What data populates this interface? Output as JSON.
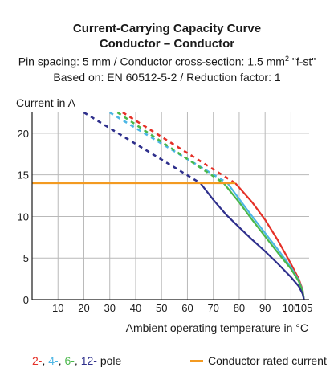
{
  "title": "Current-Carrying Capacity Curve",
  "subtitle": "Conductor – Conductor",
  "spacing_line_before": "Pin spacing: 5 mm / Conductor cross-section: 1.5 mm",
  "spacing_sup": "2",
  "spacing_line_after": " \"f-st\"",
  "basis_line": "Based on: EN 60512-5-2 / Reduction factor: 1",
  "legend": {
    "poles": [
      {
        "text": "2-",
        "color": "#e53027"
      },
      {
        "text": ", ",
        "color": "#1a1a1a"
      },
      {
        "text": "4-",
        "color": "#4cb6e5"
      },
      {
        "text": ", ",
        "color": "#1a1a1a"
      },
      {
        "text": "6-",
        "color": "#49b84a"
      },
      {
        "text": ", ",
        "color": "#1a1a1a"
      },
      {
        "text": "12-",
        "color": "#2e2f8c"
      },
      {
        "text": " pole",
        "color": "#1a1a1a"
      }
    ],
    "rated_label": "Conductor rated current",
    "rated_color": "#f39a21"
  },
  "chart_data": {
    "type": "line",
    "xlabel": "Ambient operating temperature in °C",
    "ylabel": "Current in A",
    "xlim": [
      0,
      107
    ],
    "ylim": [
      0,
      22.5
    ],
    "xticks": [
      10,
      20,
      30,
      40,
      50,
      60,
      70,
      80,
      90,
      100,
      105
    ],
    "yticks": [
      0,
      5,
      10,
      15,
      20
    ],
    "grid": true,
    "series": [
      {
        "name": "2-pole",
        "color": "#e53027",
        "dashed": [
          [
            35,
            22.5
          ],
          [
            78.5,
            14.0
          ]
        ],
        "solid": [
          [
            78.5,
            14.0
          ],
          [
            85,
            11.7
          ],
          [
            90,
            9.6
          ],
          [
            95,
            7.1
          ],
          [
            100,
            4.3
          ],
          [
            103,
            2.5
          ],
          [
            104.5,
            1.2
          ],
          [
            105,
            0
          ]
        ]
      },
      {
        "name": "4-pole",
        "color": "#4cb6e5",
        "dashed": [
          [
            30,
            22.5
          ],
          [
            75.5,
            14.0
          ]
        ],
        "solid": [
          [
            75.5,
            14.0
          ],
          [
            80,
            12.1
          ],
          [
            85,
            10.0
          ],
          [
            90,
            8.0
          ],
          [
            95,
            6.0
          ],
          [
            100,
            3.9
          ],
          [
            103,
            2.3
          ],
          [
            104.5,
            1.1
          ],
          [
            105,
            0
          ]
        ]
      },
      {
        "name": "6-pole",
        "color": "#49b84a",
        "dashed": [
          [
            33,
            22.5
          ],
          [
            74,
            14.0
          ]
        ],
        "solid": [
          [
            74,
            14.0
          ],
          [
            80,
            11.7
          ],
          [
            85,
            9.6
          ],
          [
            90,
            7.6
          ],
          [
            95,
            5.6
          ],
          [
            100,
            3.7
          ],
          [
            103,
            2.2
          ],
          [
            104.5,
            1.0
          ],
          [
            105,
            0
          ]
        ]
      },
      {
        "name": "12-pole",
        "color": "#2e2f8c",
        "dashed": [
          [
            20,
            22.5
          ],
          [
            65,
            14.0
          ]
        ],
        "solid": [
          [
            65,
            14.0
          ],
          [
            70,
            12.0
          ],
          [
            75,
            10.2
          ],
          [
            80,
            8.7
          ],
          [
            85,
            7.2
          ],
          [
            90,
            5.8
          ],
          [
            95,
            4.3
          ],
          [
            100,
            2.7
          ],
          [
            103,
            1.6
          ],
          [
            104.5,
            0.7
          ],
          [
            105,
            0
          ]
        ]
      },
      {
        "name": "Conductor rated current",
        "color": "#f39a21",
        "solid": [
          [
            0,
            14.0
          ],
          [
            78.5,
            14.0
          ]
        ]
      }
    ]
  }
}
